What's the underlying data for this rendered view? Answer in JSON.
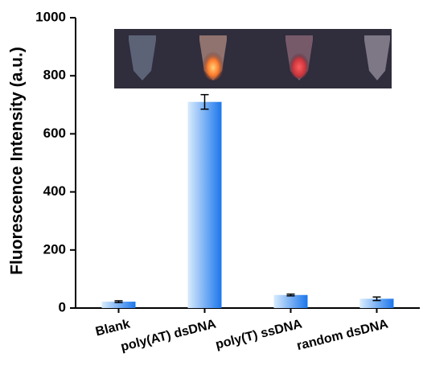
{
  "chart_data": {
    "type": "bar",
    "y_label": "Fluorescence Intensity (a.u.)",
    "categories": [
      "Blank",
      "poly(AT) dsDNA",
      "poly(T) ssDNA",
      "random dsDNA"
    ],
    "values": [
      22,
      710,
      45,
      32
    ],
    "errors": [
      3,
      25,
      3,
      6
    ],
    "color": [
      "#d9ecfd",
      "#1c76ec"
    ],
    "ylim": [
      0,
      1000
    ],
    "yticks": [
      0,
      200,
      400,
      600,
      800,
      1000
    ]
  }
}
